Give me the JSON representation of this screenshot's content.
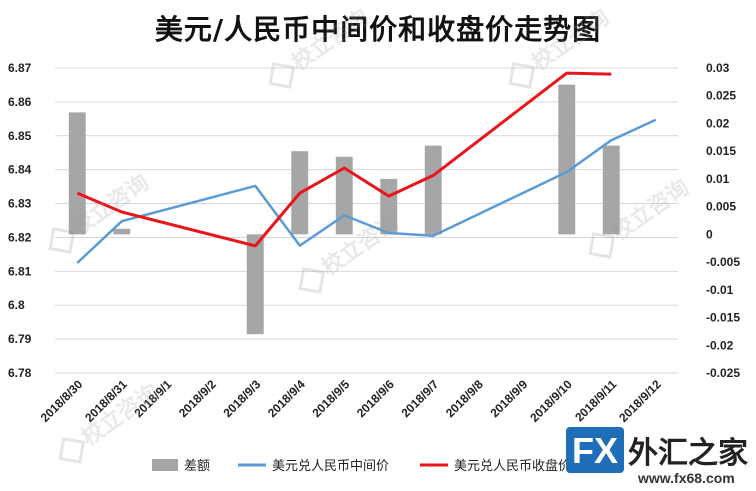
{
  "chart_data": {
    "type": "bar+line",
    "title": "美元/人民币中间价和收盘价走势图",
    "categories": [
      "2018/8/30",
      "2018/8/31",
      "2018/9/1",
      "2018/9/2",
      "2018/9/3",
      "2018/9/4",
      "2018/9/5",
      "2018/9/6",
      "2018/9/7",
      "2018/9/8",
      "2018/9/9",
      "2018/9/10",
      "2018/9/11",
      "2018/9/12"
    ],
    "y_left": {
      "min": 6.78,
      "max": 6.87,
      "step": 0.01,
      "ticks": [
        "6.78",
        "6.79",
        "6.8",
        "6.81",
        "6.82",
        "6.83",
        "6.84",
        "6.85",
        "6.86",
        "6.87"
      ]
    },
    "y_right": {
      "min": -0.025,
      "max": 0.03,
      "step": 0.005,
      "ticks": [
        "-0.025",
        "-0.02",
        "-0.015",
        "-0.01",
        "-0.005",
        "0",
        "0.005",
        "0.01",
        "0.015",
        "0.02",
        "0.025",
        "0.03"
      ]
    },
    "series": [
      {
        "name": "差额",
        "type": "bar",
        "axis": "right",
        "color": "#a6a6a6",
        "points": [
          [
            0,
            0.022
          ],
          [
            1,
            0.001
          ],
          [
            4,
            -0.018
          ],
          [
            5,
            0.015
          ],
          [
            6,
            0.014
          ],
          [
            7,
            0.01
          ],
          [
            8,
            0.016
          ],
          [
            11,
            0.027
          ],
          [
            12,
            0.016
          ]
        ]
      },
      {
        "name": "美元兑人民币中间价",
        "type": "line",
        "axis": "left",
        "color": "#5b9bd5",
        "points": [
          [
            0,
            6.8125
          ],
          [
            1,
            6.8248
          ],
          [
            4,
            6.8352
          ],
          [
            5,
            6.8176
          ],
          [
            6,
            6.8265
          ],
          [
            7,
            6.8213
          ],
          [
            8,
            6.8205
          ],
          [
            11,
            6.8393
          ],
          [
            12,
            6.8487
          ],
          [
            13,
            6.8547
          ]
        ]
      },
      {
        "name": "美元兑人民币收盘价",
        "type": "line",
        "axis": "left",
        "color": "#e8151b",
        "points": [
          [
            0,
            6.8331
          ],
          [
            1,
            6.8275
          ],
          [
            4,
            6.8175
          ],
          [
            5,
            6.8331
          ],
          [
            6,
            6.8405
          ],
          [
            7,
            6.8322
          ],
          [
            8,
            6.8383
          ],
          [
            11,
            6.8685
          ],
          [
            12,
            6.8682
          ]
        ]
      }
    ],
    "legend_position": "bottom",
    "grid": "horizontal"
  },
  "watermark": {
    "text": "校立咨询"
  },
  "logo": {
    "brand": "FX",
    "name": "外汇之家",
    "url": "www.fx68.com"
  }
}
